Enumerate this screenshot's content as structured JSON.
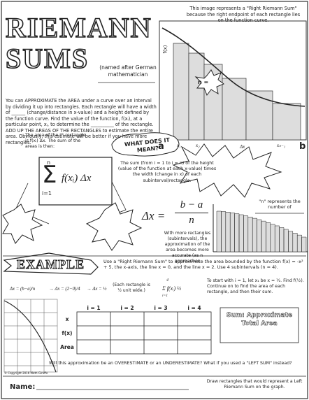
{
  "header": {
    "title_line1": "RIEMANN",
    "title_line2": "SUMS",
    "subtitle": "(named after German mathematician"
  },
  "intro": {
    "text": "You can APPROXIMATE the AREA under a curve over an interval by dividing it up into rectangles. Each rectangle will have a width of ______ (change/distance in x-value) and a height defined by the function curve. Find the value of the function, f(xᵢ), at a particular point, xᵢ, to determine the __________ of the rectangle. ADD UP THE AREAS OF THE RECTANGLES to estimate the entire area. Obviously, this estimate will be better if you have more rectangles."
  },
  "graph": {
    "caption": "This image represents a \"Right Riemann Sum\" because the right endpoint of each rectangle lies on the function curve.",
    "fx": "f(x)",
    "n_label": "n =",
    "a": "a",
    "x1": "x₁",
    "x2": "x₂",
    "dx": "Δx",
    "xn1": "xₙ₋₁",
    "b": "b"
  },
  "sum_section": {
    "area_text": "The area of the iᵗʰ rectangle is f(xᵢ) Δx. The sum of the areas is then:",
    "meaning_title": "WHAT DOES IT MEAN?",
    "meaning_text": "The sum (from i = 1 to i = n) of the height (value of the function at each x-value) times the width (change in x) of each subinterval/rectangle.",
    "sigma_top": "n",
    "sigma": "Σ",
    "sigma_bottom": "i=1",
    "sigma_body": "f(xᵢ) Δx",
    "dx_formula_left": "Δx =",
    "dx_num": "b − a",
    "dx_den": "n",
    "n_text": "\"n\" represents the number of",
    "more_text": "With more rectangles (subintervals), the approximation of the area becomes more accurate (as n approaches"
  },
  "example": {
    "banner": "EXAMPLE",
    "problem": "Use a \"Right Riemann Sum\" to approximate the area bounded by the function f(x) = -x² + 5, the x-axis, the line x = 0, and the line x = 2. Use 4 subintervals (n = 4).",
    "step1": "Δx = (b−a)/n",
    "step2": "→ Δx = (2−0)/4",
    "step3": "→ Δx = ½",
    "step_note": "(Each rectangle is ½ unit wide.)",
    "sum_expr": "Σ f(xᵢ) ½",
    "sum_top": "4",
    "sum_bottom": "i=1",
    "instructions": "To start with i = 1, let x₁ be x = ½. Find f(½). Continue on to find the area of each rectangle, and then their sum.",
    "table": {
      "columns": [
        "i = 1",
        "i = 2",
        "i = 3",
        "i = 4"
      ],
      "rows": [
        "x",
        "f(x)",
        "Area"
      ]
    },
    "total": "Sum: Approximate Total Area",
    "question": "Will this approximation be an OVERESTIMATE or an UNDERESTIMATE? What if you used a \"LEFT SUM\" instead?",
    "copyright": "© Copyright 2016 Math Giraffe"
  },
  "footer": {
    "name": "Name:",
    "note": "Draw rectangles that would represent a Left Riemann Sum on the graph."
  }
}
